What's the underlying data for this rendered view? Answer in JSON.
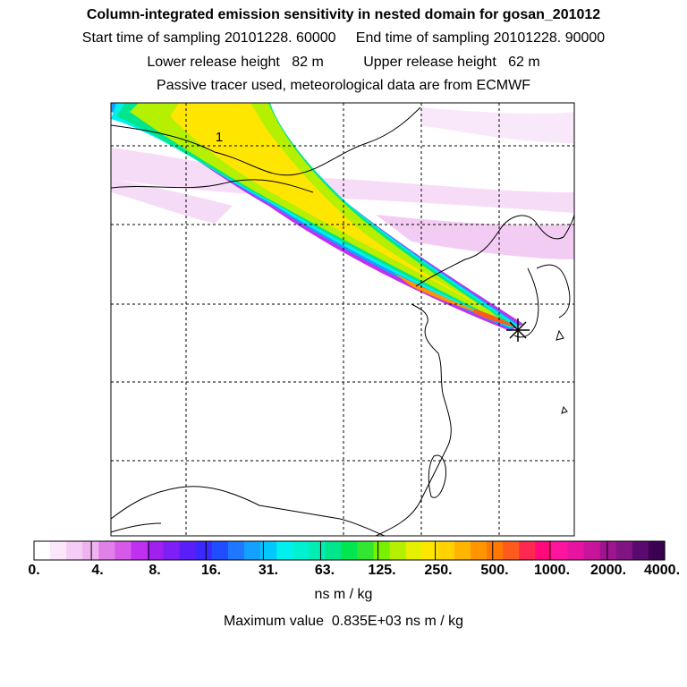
{
  "header": {
    "title": "Column-integrated emission sensitivity in nested domain for gosan_201012",
    "sampling": "Start time of sampling 20101228. 60000     End time of sampling 20101228. 90000",
    "release": "Lower release height   82 m          Upper release height   62 m",
    "tracer": "Passive tracer used, meteorological data are from ECMWF"
  },
  "map": {
    "contour_label": "1",
    "receptor_marker": "star-icon"
  },
  "colorbar": {
    "ticks": [
      "0.",
      "4.",
      "8.",
      "16.",
      "31.",
      "63.",
      "125.",
      "250.",
      "500.",
      "1000.",
      "2000.",
      "4000."
    ],
    "colors": [
      "#ffffff",
      "#fbe6fb",
      "#f5ccf5",
      "#f0b3f0",
      "#e080e8",
      "#d65ae8",
      "#c030f0",
      "#a020f0",
      "#7d1ff5",
      "#5a1ff8",
      "#3a28ff",
      "#1f4dff",
      "#1f78ff",
      "#14a0ff",
      "#00c8ff",
      "#00f0f0",
      "#00f0d2",
      "#00eeb4",
      "#00e68c",
      "#00e650",
      "#32e632",
      "#78f000",
      "#b4f000",
      "#e6f000",
      "#ffe600",
      "#ffd200",
      "#ffb400",
      "#ff9600",
      "#ff7800",
      "#ff5a1e",
      "#ff2850",
      "#ff0a78",
      "#ff14a0",
      "#e614a0",
      "#c8149b",
      "#a01490",
      "#801480",
      "#5a0a6e",
      "#3c0050"
    ],
    "unit": "ns m / kg"
  },
  "footer": {
    "maximum": "Maximum value  0.835E+03 ns m / kg"
  }
}
